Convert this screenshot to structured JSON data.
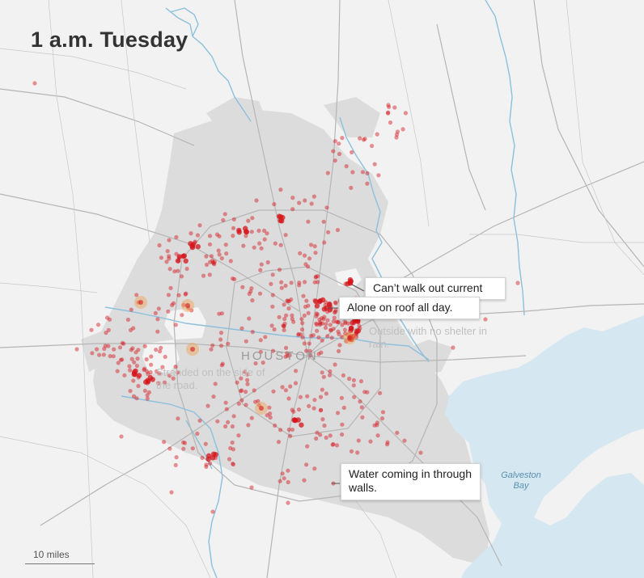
{
  "map": {
    "title": "1 a.m. Tuesday",
    "city_label": "HOUSTON",
    "water_label": "Galveston Bay",
    "scale_label": "10 miles",
    "colors": {
      "background": "#f2f2f2",
      "urban_area": "#dcdcdc",
      "water": "#d5e7f0",
      "rivers": "#8cc0dc",
      "roads": "#b5b5b5",
      "rescue_dot": "#d4141a",
      "rescue_hotspot": "#f0a050"
    }
  },
  "callouts": [
    {
      "text": "Can’t walk out current"
    },
    {
      "text": "Alone on roof all day."
    },
    {
      "text": "Water coming in through walls."
    }
  ],
  "faded_callouts": [
    {
      "text": "Outside with no shelter in rain."
    },
    {
      "text": "Stranded on the side of the road."
    }
  ]
}
